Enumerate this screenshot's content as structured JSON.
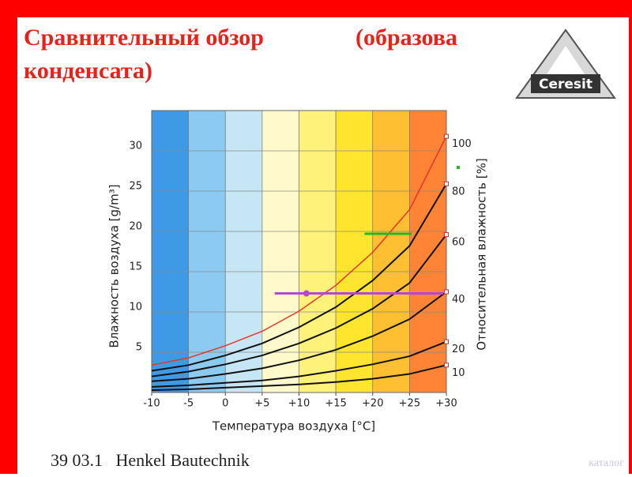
{
  "slide": {
    "title_line1": "Сравнительный обзор",
    "title_bracket": "(образова",
    "title_line2": "конденсата)",
    "logo": "Ceresit",
    "footer": "39 03.1   Henkel Bautechnik",
    "link": "каталог"
  },
  "chart_data": {
    "type": "line",
    "x_label": "Температура воздуха [°C]",
    "y_label": "Влажность воздуха [g/m³]",
    "y2_label": "Относительная влажность [%]",
    "x": [
      -10,
      -5,
      0,
      5,
      10,
      15,
      20,
      25,
      30
    ],
    "xlim": [
      -10,
      30
    ],
    "xticks": [
      -10,
      -5,
      0,
      {
        "value": 5,
        "label": "+5"
      },
      {
        "value": 10,
        "label": "+10"
      },
      {
        "value": 15,
        "label": "+15"
      },
      {
        "value": 20,
        "label": "+20"
      },
      {
        "value": 25,
        "label": "+25"
      },
      {
        "value": 30,
        "label": "+30"
      }
    ],
    "ylim": [
      0,
      35
    ],
    "yticks": [
      5,
      10,
      15,
      20,
      25,
      30
    ],
    "grid": true,
    "band_colors": [
      "#3f9ae6",
      "#8ccaf2",
      "#c6e6f6",
      "#fff9cc",
      "#fff27a",
      "#ffe52e",
      "#ffbf33",
      "#ff8436"
    ],
    "series": [
      {
        "name": "100",
        "color": "#e8342a",
        "values": [
          3.4,
          4.3,
          5.8,
          7.6,
          10.1,
          13.3,
          17.4,
          22.7,
          31.8
        ]
      },
      {
        "name": "80",
        "color": "#111111",
        "values": [
          2.7,
          3.4,
          4.6,
          6.1,
          8.1,
          10.6,
          13.9,
          18.2,
          25.9
        ]
      },
      {
        "name": "60",
        "color": "#111111",
        "values": [
          2.0,
          2.6,
          3.5,
          4.6,
          6.1,
          8.0,
          10.4,
          13.6,
          19.6
        ]
      },
      {
        "name": "40",
        "color": "#111111",
        "values": [
          1.4,
          1.7,
          2.3,
          3.0,
          4.0,
          5.3,
          7.0,
          9.1,
          12.5
        ]
      },
      {
        "name": "20",
        "color": "#111111",
        "values": [
          0.7,
          0.9,
          1.2,
          1.5,
          2.0,
          2.7,
          3.5,
          4.5,
          6.3
        ]
      },
      {
        "name": "10",
        "color": "#111111",
        "values": [
          0.3,
          0.4,
          0.6,
          0.8,
          1.0,
          1.3,
          1.7,
          2.3,
          3.4
        ]
      }
    ],
    "highlights": [
      {
        "color": "#b544e6",
        "x": [
          6.7,
          29.6
        ],
        "y": [
          12.3,
          12.3
        ],
        "point": [
          11.0,
          12.3
        ]
      },
      {
        "color": "#22b822",
        "x": [
          18.9,
          25.3
        ],
        "y": [
          19.7,
          19.7
        ]
      }
    ]
  }
}
